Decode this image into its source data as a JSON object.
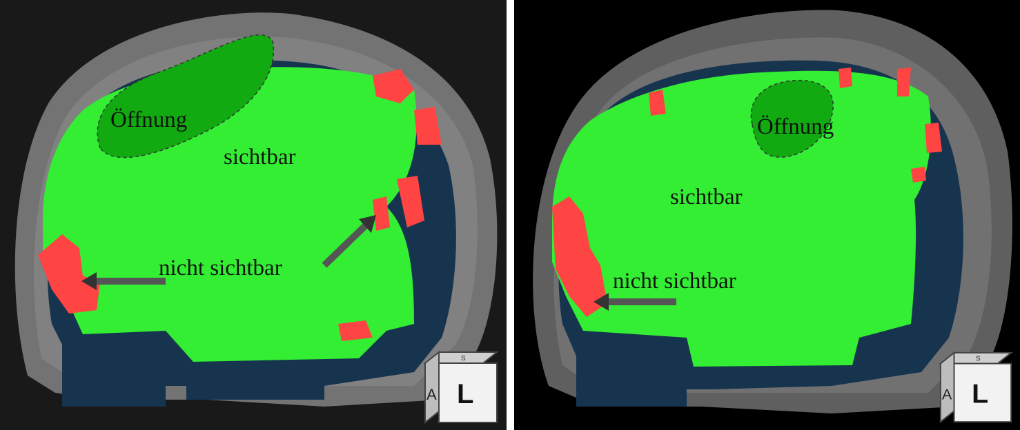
{
  "panels": [
    {
      "id": "left",
      "labels": {
        "opening": "Öffnung",
        "visible": "sichtbar",
        "not_visible": "nicht sichtbar"
      },
      "orientation_cube": {
        "face": "L",
        "side": "A",
        "top": "S"
      }
    },
    {
      "id": "right",
      "labels": {
        "opening": "Öffnung",
        "visible": "sichtbar",
        "not_visible": "nicht sichtbar"
      },
      "orientation_cube": {
        "face": "L",
        "side": "A",
        "top": "S"
      }
    }
  ],
  "colors": {
    "visible_region": "#33ee33",
    "not_visible_region": "#ff4444",
    "opening_region": "#11aa11",
    "skull_shell": "#c8c8c8",
    "brain_surface": "#17344f",
    "divider": "#ffffff"
  }
}
